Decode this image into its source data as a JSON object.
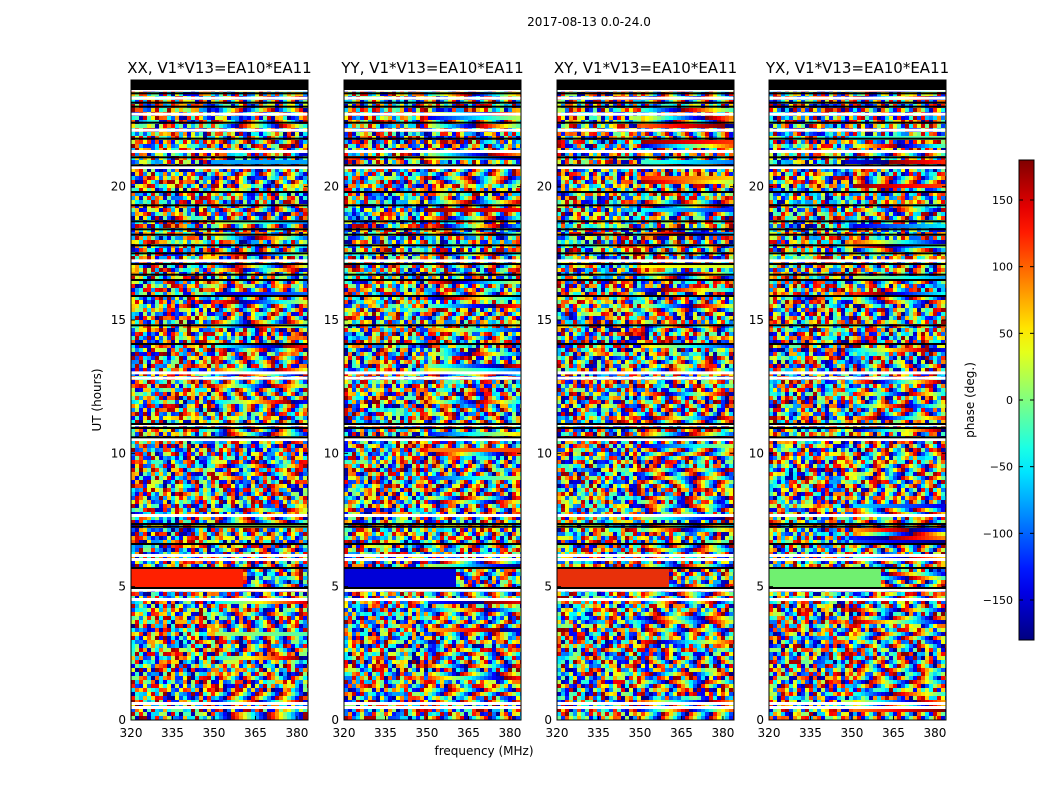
{
  "chart_data": {
    "type": "heatmap",
    "suptitle": "2017-08-13 0.0-24.0",
    "xlabel": "frequency (MHz)",
    "ylabel": "UT (hours)",
    "xlim": [
      320,
      384
    ],
    "ylim": [
      0,
      24
    ],
    "x_ticks": [
      320,
      335,
      350,
      365,
      380
    ],
    "y_ticks": [
      0,
      5,
      10,
      15,
      20
    ],
    "panels": [
      {
        "title": "XX, V1*V13=EA10*EA11",
        "band_5h_color": "#ff2000"
      },
      {
        "title": "YY, V1*V13=EA10*EA11",
        "band_5h_color": "#0000d8"
      },
      {
        "title": "XY, V1*V13=EA10*EA11",
        "band_5h_color": "#e8300a"
      },
      {
        "title": "YX, V1*V13=EA10*EA11",
        "band_5h_color": "#70f070"
      }
    ],
    "colorbar": {
      "label": "phase (deg.)",
      "range": [
        -180,
        180
      ],
      "ticks": [
        150,
        100,
        50,
        0,
        -50,
        -100,
        -150
      ],
      "tick_labels": [
        "150",
        "100",
        "50",
        "0",
        "−50",
        "−100",
        "−150"
      ],
      "colormap": "jet"
    },
    "blank_rows_hours": [
      0.45,
      0.6,
      4.5,
      4.85,
      6.0,
      6.15,
      7.65,
      10.5,
      11.05,
      12.8,
      13.0,
      17.2,
      20.7,
      21.3,
      22.1,
      22.7,
      23.3,
      23.6,
      23.8
    ],
    "black_rows_hours": [
      5.7,
      4.95,
      6.6,
      7.25,
      7.35,
      10.6,
      10.95,
      11.1,
      14.1,
      14.8,
      15.9,
      16.5,
      16.7,
      17.1,
      17.5,
      17.8,
      18.2,
      18.4,
      18.7,
      19.3,
      19.8,
      20.8,
      21.1,
      21.8,
      22.4,
      23.0,
      23.15,
      23.5,
      23.9
    ]
  }
}
